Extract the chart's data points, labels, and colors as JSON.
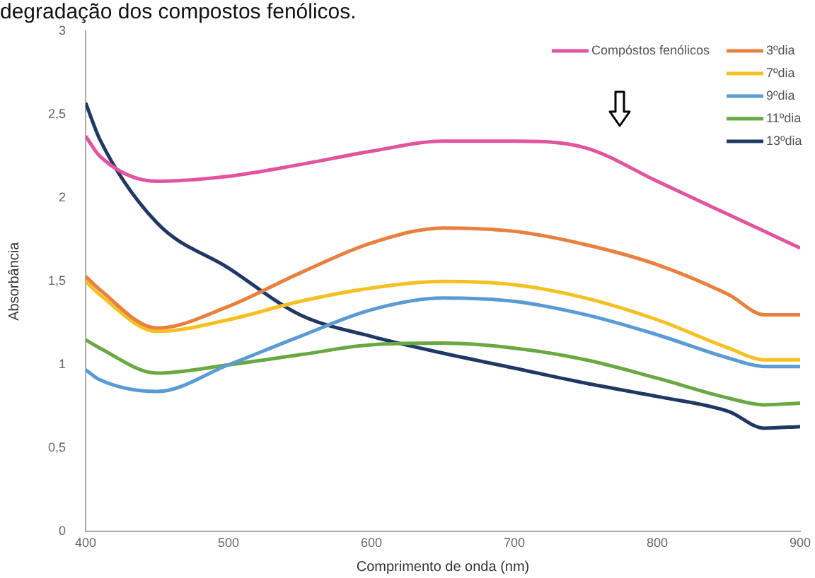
{
  "chart_data": {
    "type": "line",
    "title": "degradação dos compostos fenólicos.",
    "xlabel": "Comprimento de onda (nm)",
    "ylabel": "Absorbância",
    "x": [
      400,
      410,
      450,
      500,
      550,
      600,
      650,
      700,
      750,
      800,
      850,
      875,
      900
    ],
    "xlim": [
      400,
      900
    ],
    "xticks": [
      400,
      500,
      600,
      700,
      800,
      900
    ],
    "ylim": [
      0,
      3
    ],
    "yticks": [
      0,
      {
        "value": 0.5,
        "label": "0,5"
      },
      1,
      {
        "value": 1.5,
        "label": "1,5"
      },
      2,
      {
        "value": 2.5,
        "label": "2,5"
      },
      3
    ],
    "grid": false,
    "legend": "top right",
    "marker": "none",
    "line_style": "solid",
    "series": [
      {
        "name": "Compóstos fenólicos",
        "color": "#e0559e",
        "values": [
          2.37,
          2.25,
          2.1,
          2.13,
          2.2,
          2.28,
          2.34,
          2.34,
          2.3,
          2.1,
          1.9,
          1.8,
          1.7
        ]
      },
      {
        "name": "3ºdia",
        "color": "#e8803f",
        "values": [
          1.53,
          1.45,
          1.22,
          1.35,
          1.55,
          1.73,
          1.82,
          1.8,
          1.72,
          1.6,
          1.42,
          1.3,
          1.3
        ]
      },
      {
        "name": "7ºdia",
        "color": "#f5c022",
        "values": [
          1.5,
          1.42,
          1.2,
          1.27,
          1.38,
          1.46,
          1.5,
          1.48,
          1.4,
          1.27,
          1.1,
          1.03,
          1.03
        ]
      },
      {
        "name": "9ºdia",
        "color": "#5b9bd5",
        "values": [
          0.97,
          0.91,
          0.84,
          1.0,
          1.17,
          1.33,
          1.4,
          1.38,
          1.3,
          1.18,
          1.04,
          0.99,
          0.99
        ]
      },
      {
        "name": "11ºdia",
        "color": "#6aa844",
        "values": [
          1.15,
          1.1,
          0.95,
          1.0,
          1.06,
          1.12,
          1.13,
          1.1,
          1.03,
          0.92,
          0.8,
          0.76,
          0.77
        ]
      },
      {
        "name": "13ºdia",
        "color": "#1f3864",
        "values": [
          2.57,
          2.35,
          1.85,
          1.58,
          1.3,
          1.17,
          1.07,
          0.98,
          0.89,
          0.81,
          0.72,
          0.62,
          0.63
        ]
      }
    ]
  }
}
